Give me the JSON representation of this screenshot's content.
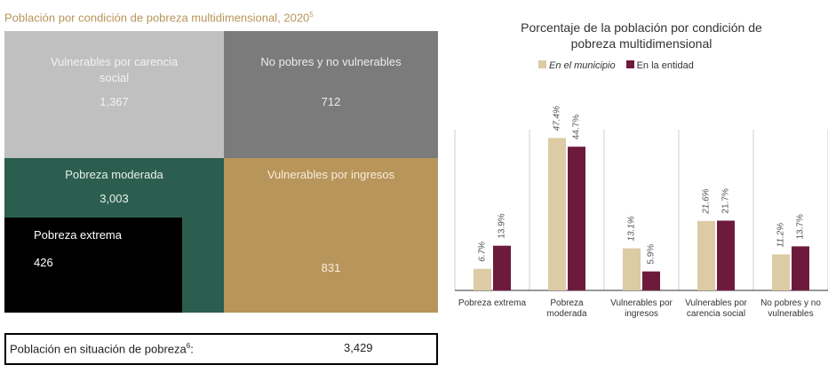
{
  "header": {
    "subtitle": "Población por condición de pobreza multidimensional, 2020",
    "subtitle_note": "5"
  },
  "quadrants": [
    {
      "label": "Vulnerables por carencia social",
      "value": "1,367"
    },
    {
      "label": "No pobres y no vulnerables",
      "value": "712"
    },
    {
      "label": "Pobreza moderada",
      "value": "3,003"
    },
    {
      "label": "Vulnerables por ingresos",
      "value": "831"
    },
    {
      "label": "Pobreza extrema",
      "value": "426"
    }
  ],
  "summary": {
    "label": "Población en situación de pobreza",
    "note": "6",
    "colon": ":",
    "value": "3,429"
  },
  "chart_data": {
    "type": "bar",
    "title": "Porcentaje de la población por condición de pobreza multidimensional",
    "categories": [
      "Pobreza extrema",
      "Pobreza moderada",
      "Vulnerables por ingresos",
      "Vulnerables por carencia social",
      "No pobres y no vulnerables"
    ],
    "series": [
      {
        "name": "En el municipio",
        "color": "#dccba4",
        "values": [
          6.7,
          47.4,
          13.1,
          21.6,
          11.2
        ],
        "value_labels": [
          "6.7%",
          "47.4%",
          "13.1%",
          "21.6%",
          "11.2%"
        ]
      },
      {
        "name": "En la entidad",
        "color": "#6e1a3c",
        "values": [
          13.9,
          44.7,
          5.9,
          21.7,
          13.7
        ],
        "value_labels": [
          "13.9%",
          "44.7%",
          "5.9%",
          "21.7%",
          "13.7%"
        ]
      }
    ],
    "ylim": [
      0,
      50
    ]
  }
}
